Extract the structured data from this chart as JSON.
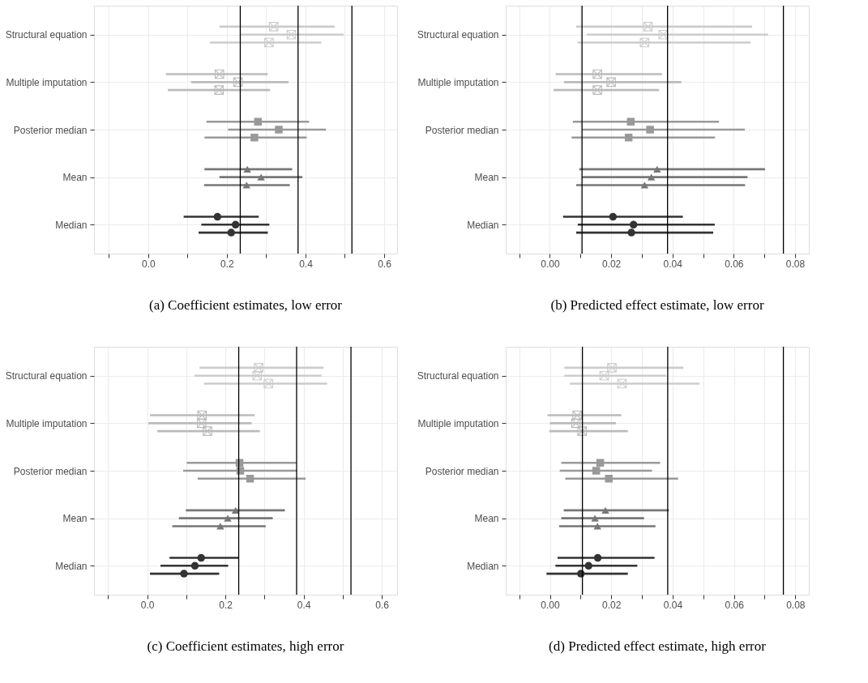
{
  "chart_data": [
    {
      "type": "scatter",
      "title": "(a) Coefficient estimates, low error",
      "orientation": "horizontal",
      "grid": true,
      "categories": [
        null,
        null,
        null,
        "Structural equation",
        null,
        null,
        null,
        null,
        null,
        "Multiple imputation",
        null,
        null,
        null,
        null,
        null,
        "Posterior median",
        null,
        null,
        null,
        null,
        null,
        "Mean",
        null,
        null,
        null,
        null,
        null,
        "Median",
        null,
        null,
        null
      ],
      "xlim": [
        -0.138,
        0.633
      ],
      "xticks": [
        {
          "value": -0.1,
          "label": null
        },
        {
          "value": 0,
          "label": "0.0"
        },
        {
          "value": 0.1,
          "label": null
        },
        {
          "value": 0.2,
          "label": "0.2"
        },
        {
          "value": 0.3,
          "label": null
        },
        {
          "value": 0.4,
          "label": "0.4"
        },
        {
          "value": 0.5,
          "label": null
        },
        {
          "value": 0.6,
          "label": "0.6"
        }
      ],
      "series": [
        {
          "color": "#cccccc",
          "marker": "cross",
          "values": [
            null,
            null,
            0.319,
            0.364,
            0.307,
            null,
            null,
            null,
            null,
            null,
            null,
            null,
            null,
            null,
            null,
            null,
            null,
            null,
            null,
            null,
            null,
            null,
            null,
            null,
            null,
            null,
            null,
            null,
            null,
            null,
            null
          ],
          "errors": [
            null,
            null,
            [
              0.181,
              0.474
            ],
            [
              0.235,
              0.497
            ],
            [
              0.157,
              0.44
            ],
            null,
            null,
            null,
            null,
            null,
            null,
            null,
            null,
            null,
            null,
            null,
            null,
            null,
            null,
            null,
            null,
            null,
            null,
            null,
            null,
            null,
            null,
            null,
            null,
            null,
            null
          ]
        },
        {
          "color": "#bbbbbb",
          "marker": "cross",
          "values": [
            null,
            null,
            null,
            null,
            null,
            null,
            null,
            null,
            0.181,
            0.228,
            0.18,
            null,
            null,
            null,
            null,
            null,
            null,
            null,
            null,
            null,
            null,
            null,
            null,
            null,
            null,
            null,
            null,
            null,
            null,
            null,
            null
          ],
          "errors": [
            null,
            null,
            null,
            null,
            null,
            null,
            null,
            null,
            [
              0.045,
              0.304
            ],
            [
              0.109,
              0.357
            ],
            [
              0.05,
              0.31
            ],
            null,
            null,
            null,
            null,
            null,
            null,
            null,
            null,
            null,
            null,
            null,
            null,
            null,
            null,
            null,
            null,
            null,
            null,
            null,
            null
          ]
        },
        {
          "color": "#999999",
          "marker": "square",
          "values": [
            null,
            null,
            null,
            null,
            null,
            null,
            null,
            null,
            null,
            null,
            null,
            null,
            null,
            null,
            0.279,
            0.332,
            0.27,
            null,
            null,
            null,
            null,
            null,
            null,
            null,
            null,
            null,
            null,
            null,
            null,
            null,
            null
          ],
          "errors": [
            null,
            null,
            null,
            null,
            null,
            null,
            null,
            null,
            null,
            null,
            null,
            null,
            null,
            null,
            [
              0.148,
              0.409
            ],
            [
              0.203,
              0.452
            ],
            [
              0.143,
              0.403
            ],
            null,
            null,
            null,
            null,
            null,
            null,
            null,
            null,
            null,
            null,
            null,
            null,
            null,
            null
          ]
        },
        {
          "color": "#777777",
          "marker": "triangle",
          "values": [
            null,
            null,
            null,
            null,
            null,
            null,
            null,
            null,
            null,
            null,
            null,
            null,
            null,
            null,
            null,
            null,
            null,
            null,
            null,
            null,
            0.252,
            0.287,
            0.25,
            null,
            null,
            null,
            null,
            null,
            null,
            null,
            null
          ],
          "errors": [
            null,
            null,
            null,
            null,
            null,
            null,
            null,
            null,
            null,
            null,
            null,
            null,
            null,
            null,
            null,
            null,
            null,
            null,
            null,
            null,
            [
              0.143,
              0.366
            ],
            [
              0.181,
              0.392
            ],
            [
              0.142,
              0.36
            ],
            null,
            null,
            null,
            null,
            null,
            null,
            null,
            null
          ]
        },
        {
          "color": "#333333",
          "marker": "circle",
          "values": [
            null,
            null,
            null,
            null,
            null,
            null,
            null,
            null,
            null,
            null,
            null,
            null,
            null,
            null,
            null,
            null,
            null,
            null,
            null,
            null,
            null,
            null,
            null,
            null,
            null,
            null,
            0.176,
            0.222,
            0.211,
            null,
            null
          ],
          "errors": [
            null,
            null,
            null,
            null,
            null,
            null,
            null,
            null,
            null,
            null,
            null,
            null,
            null,
            null,
            null,
            null,
            null,
            null,
            null,
            null,
            null,
            null,
            null,
            null,
            null,
            null,
            [
              0.09,
              0.281
            ],
            [
              0.135,
              0.308
            ],
            [
              0.128,
              0.304
            ],
            null,
            null
          ]
        }
      ],
      "ref_lines": [
        {
          "axis": "x",
          "value": 0.234,
          "color": "#000000"
        },
        {
          "axis": "x",
          "value": 0.381,
          "color": "#000000"
        },
        {
          "axis": "x",
          "value": 0.518,
          "color": "#000000"
        }
      ]
    },
    {
      "type": "scatter",
      "title": "(b) Predicted effect estimate, low error",
      "orientation": "horizontal",
      "grid": true,
      "categories": [
        null,
        null,
        null,
        "Structural equation",
        null,
        null,
        null,
        null,
        null,
        "Multiple imputation",
        null,
        null,
        null,
        null,
        null,
        "Posterior median",
        null,
        null,
        null,
        null,
        null,
        "Mean",
        null,
        null,
        null,
        null,
        null,
        "Median",
        null,
        null,
        null
      ],
      "xlim": [
        -0.0144,
        0.0845
      ],
      "xticks": [
        {
          "value": -0.01,
          "label": null
        },
        {
          "value": 0,
          "label": "0.00"
        },
        {
          "value": 0.01,
          "label": null
        },
        {
          "value": 0.02,
          "label": "0.02"
        },
        {
          "value": 0.03,
          "label": null
        },
        {
          "value": 0.04,
          "label": "0.04"
        },
        {
          "value": 0.05,
          "label": null
        },
        {
          "value": 0.06,
          "label": "0.06"
        },
        {
          "value": 0.07,
          "label": null
        },
        {
          "value": 0.08,
          "label": "0.08"
        }
      ],
      "series": [
        {
          "color": "#cccccc",
          "marker": "cross",
          "values": [
            null,
            null,
            0.032,
            0.037,
            0.0309,
            null,
            null,
            null,
            null,
            null,
            null,
            null,
            null,
            null,
            null,
            null,
            null,
            null,
            null,
            null,
            null,
            null,
            null,
            null,
            null,
            null,
            null,
            null,
            null,
            null,
            null
          ],
          "errors": [
            null,
            null,
            [
              0.0086,
              0.066
            ],
            [
              0.0121,
              0.0712
            ],
            [
              0.0091,
              0.0655
            ],
            null,
            null,
            null,
            null,
            null,
            null,
            null,
            null,
            null,
            null,
            null,
            null,
            null,
            null,
            null,
            null,
            null,
            null,
            null,
            null,
            null,
            null,
            null,
            null,
            null,
            null
          ]
        },
        {
          "color": "#bbbbbb",
          "marker": "cross",
          "values": [
            null,
            null,
            null,
            null,
            null,
            null,
            null,
            null,
            0.0155,
            0.02,
            0.0155,
            null,
            null,
            null,
            null,
            null,
            null,
            null,
            null,
            null,
            null,
            null,
            null,
            null,
            null,
            null,
            null,
            null,
            null,
            null,
            null
          ],
          "errors": [
            null,
            null,
            null,
            null,
            null,
            null,
            null,
            null,
            [
              0.0019,
              0.0366
            ],
            [
              0.0046,
              0.0429
            ],
            [
              0.0012,
              0.0356
            ],
            null,
            null,
            null,
            null,
            null,
            null,
            null,
            null,
            null,
            null,
            null,
            null,
            null,
            null,
            null,
            null,
            null,
            null,
            null,
            null
          ]
        },
        {
          "color": "#999999",
          "marker": "square",
          "values": [
            null,
            null,
            null,
            null,
            null,
            null,
            null,
            null,
            null,
            null,
            null,
            null,
            null,
            null,
            0.0264,
            0.0327,
            0.0257,
            null,
            null,
            null,
            null,
            null,
            null,
            null,
            null,
            null,
            null,
            null,
            null,
            null,
            null
          ],
          "errors": [
            null,
            null,
            null,
            null,
            null,
            null,
            null,
            null,
            null,
            null,
            null,
            null,
            null,
            null,
            [
              0.0075,
              0.0552
            ],
            [
              0.0105,
              0.0636
            ],
            [
              0.0071,
              0.0539
            ],
            null,
            null,
            null,
            null,
            null,
            null,
            null,
            null,
            null,
            null,
            null,
            null,
            null,
            null
          ]
        },
        {
          "color": "#777777",
          "marker": "triangle",
          "values": [
            null,
            null,
            null,
            null,
            null,
            null,
            null,
            null,
            null,
            null,
            null,
            null,
            null,
            null,
            null,
            null,
            null,
            null,
            null,
            null,
            0.035,
            0.0331,
            0.0309,
            null,
            null,
            null,
            null,
            null,
            null,
            null,
            null
          ],
          "errors": [
            null,
            null,
            null,
            null,
            null,
            null,
            null,
            null,
            null,
            null,
            null,
            null,
            null,
            null,
            null,
            null,
            null,
            null,
            null,
            null,
            [
              0.0096,
              0.0702
            ],
            [
              0.0105,
              0.0645
            ],
            [
              0.0086,
              0.0637
            ],
            null,
            null,
            null,
            null,
            null,
            null,
            null,
            null
          ]
        },
        {
          "color": "#333333",
          "marker": "circle",
          "values": [
            null,
            null,
            null,
            null,
            null,
            null,
            null,
            null,
            null,
            null,
            null,
            null,
            null,
            null,
            null,
            null,
            null,
            null,
            null,
            null,
            null,
            null,
            null,
            null,
            null,
            null,
            0.0206,
            0.0273,
            0.0266,
            null,
            null
          ],
          "errors": [
            null,
            null,
            null,
            null,
            null,
            null,
            null,
            null,
            null,
            null,
            null,
            null,
            null,
            null,
            null,
            null,
            null,
            null,
            null,
            null,
            null,
            null,
            null,
            null,
            null,
            null,
            [
              0.0043,
              0.0434
            ],
            [
              0.0091,
              0.0538
            ],
            [
              0.0086,
              0.0533
            ],
            null,
            null
          ]
        }
      ],
      "ref_lines": [
        {
          "axis": "x",
          "value": 0.0105,
          "color": "#000000"
        },
        {
          "axis": "x",
          "value": 0.0384,
          "color": "#000000"
        },
        {
          "axis": "x",
          "value": 0.0762,
          "color": "#000000"
        }
      ]
    },
    {
      "type": "scatter",
      "title": "(c) Coefficient estimates, high error",
      "orientation": "horizontal",
      "grid": true,
      "categories": [
        null,
        null,
        null,
        "Structural equation",
        null,
        null,
        null,
        null,
        null,
        "Multiple imputation",
        null,
        null,
        null,
        null,
        null,
        "Posterior median",
        null,
        null,
        null,
        null,
        null,
        "Mean",
        null,
        null,
        null,
        null,
        null,
        "Median",
        null,
        null,
        null
      ],
      "xlim": [
        -0.136,
        0.639
      ],
      "xticks": [
        {
          "value": -0.1,
          "label": null
        },
        {
          "value": 0,
          "label": "0.0"
        },
        {
          "value": 0.1,
          "label": null
        },
        {
          "value": 0.2,
          "label": "0.2"
        },
        {
          "value": 0.3,
          "label": null
        },
        {
          "value": 0.4,
          "label": "0.4"
        },
        {
          "value": 0.5,
          "label": null
        },
        {
          "value": 0.6,
          "label": "0.6"
        }
      ],
      "series": [
        {
          "color": "#cccccc",
          "marker": "cross",
          "values": [
            null,
            null,
            0.285,
            0.281,
            0.31,
            null,
            null,
            null,
            null,
            null,
            null,
            null,
            null,
            null,
            null,
            null,
            null,
            null,
            null,
            null,
            null,
            null,
            null,
            null,
            null,
            null,
            null,
            null,
            null,
            null,
            null
          ],
          "errors": [
            null,
            null,
            [
              0.134,
              0.451
            ],
            [
              0.121,
              0.446
            ],
            [
              0.145,
              0.46
            ],
            null,
            null,
            null,
            null,
            null,
            null,
            null,
            null,
            null,
            null,
            null,
            null,
            null,
            null,
            null,
            null,
            null,
            null,
            null,
            null,
            null,
            null,
            null,
            null,
            null,
            null
          ]
        },
        {
          "color": "#bbbbbb",
          "marker": "cross",
          "values": [
            null,
            null,
            null,
            null,
            null,
            null,
            null,
            null,
            0.14,
            0.139,
            0.154,
            null,
            null,
            null,
            null,
            null,
            null,
            null,
            null,
            null,
            null,
            null,
            null,
            null,
            null,
            null,
            null,
            null,
            null,
            null,
            null
          ],
          "errors": [
            null,
            null,
            null,
            null,
            null,
            null,
            null,
            null,
            [
              0.007,
              0.275
            ],
            [
              0.003,
              0.267
            ],
            [
              0.026,
              0.288
            ],
            null,
            null,
            null,
            null,
            null,
            null,
            null,
            null,
            null,
            null,
            null,
            null,
            null,
            null,
            null,
            null,
            null,
            null,
            null,
            null
          ]
        },
        {
          "color": "#999999",
          "marker": "square",
          "values": [
            null,
            null,
            null,
            null,
            null,
            null,
            null,
            null,
            null,
            null,
            null,
            null,
            null,
            null,
            0.236,
            0.238,
            0.263,
            null,
            null,
            null,
            null,
            null,
            null,
            null,
            null,
            null,
            null,
            null,
            null,
            null,
            null
          ],
          "errors": [
            null,
            null,
            null,
            null,
            null,
            null,
            null,
            null,
            null,
            null,
            null,
            null,
            null,
            null,
            [
              0.101,
              0.382
            ],
            [
              0.092,
              0.383
            ],
            [
              0.129,
              0.405
            ],
            null,
            null,
            null,
            null,
            null,
            null,
            null,
            null,
            null,
            null,
            null,
            null,
            null,
            null
          ]
        },
        {
          "color": "#777777",
          "marker": "triangle",
          "values": [
            null,
            null,
            null,
            null,
            null,
            null,
            null,
            null,
            null,
            null,
            null,
            null,
            null,
            null,
            null,
            null,
            null,
            null,
            null,
            null,
            0.226,
            0.206,
            0.187,
            null,
            null,
            null,
            null,
            null,
            null,
            null,
            null
          ],
          "errors": [
            null,
            null,
            null,
            null,
            null,
            null,
            null,
            null,
            null,
            null,
            null,
            null,
            null,
            null,
            null,
            null,
            null,
            null,
            null,
            null,
            [
              0.099,
              0.352
            ],
            [
              0.081,
              0.321
            ],
            [
              0.064,
              0.303
            ],
            null,
            null,
            null,
            null,
            null,
            null,
            null,
            null
          ]
        },
        {
          "color": "#333333",
          "marker": "circle",
          "values": [
            null,
            null,
            null,
            null,
            null,
            null,
            null,
            null,
            null,
            null,
            null,
            null,
            null,
            null,
            null,
            null,
            null,
            null,
            null,
            null,
            null,
            null,
            null,
            null,
            null,
            null,
            0.138,
            0.122,
            0.094,
            null,
            null
          ],
          "errors": [
            null,
            null,
            null,
            null,
            null,
            null,
            null,
            null,
            null,
            null,
            null,
            null,
            null,
            null,
            null,
            null,
            null,
            null,
            null,
            null,
            null,
            null,
            null,
            null,
            null,
            null,
            [
              0.057,
              0.234
            ],
            [
              0.034,
              0.207
            ],
            [
              0.007,
              0.184
            ],
            null,
            null
          ]
        }
      ],
      "ref_lines": [
        {
          "axis": "x",
          "value": 0.234,
          "color": "#000000"
        },
        {
          "axis": "x",
          "value": 0.382,
          "color": "#000000"
        },
        {
          "axis": "x",
          "value": 0.521,
          "color": "#000000"
        }
      ]
    },
    {
      "type": "scatter",
      "title": "(d) Predicted effect estimate, high error",
      "orientation": "horizontal",
      "grid": true,
      "categories": [
        null,
        null,
        null,
        "Structural equation",
        null,
        null,
        null,
        null,
        null,
        "Multiple imputation",
        null,
        null,
        null,
        null,
        null,
        "Posterior median",
        null,
        null,
        null,
        null,
        null,
        "Mean",
        null,
        null,
        null,
        null,
        null,
        "Median",
        null,
        null,
        null
      ],
      "xlim": [
        -0.0144,
        0.0844
      ],
      "xticks": [
        {
          "value": -0.01,
          "label": null
        },
        {
          "value": 0,
          "label": "0.00"
        },
        {
          "value": 0.01,
          "label": null
        },
        {
          "value": 0.02,
          "label": "0.02"
        },
        {
          "value": 0.03,
          "label": null
        },
        {
          "value": 0.04,
          "label": "0.04"
        },
        {
          "value": 0.05,
          "label": null
        },
        {
          "value": 0.06,
          "label": "0.06"
        },
        {
          "value": 0.07,
          "label": null
        },
        {
          "value": 0.08,
          "label": "0.08"
        }
      ],
      "series": [
        {
          "color": "#cccccc",
          "marker": "cross",
          "values": [
            null,
            null,
            0.0202,
            0.0177,
            0.0235,
            null,
            null,
            null,
            null,
            null,
            null,
            null,
            null,
            null,
            null,
            null,
            null,
            null,
            null,
            null,
            null,
            null,
            null,
            null,
            null,
            null,
            null,
            null,
            null,
            null,
            null
          ],
          "errors": [
            null,
            null,
            [
              0.0047,
              0.0435
            ],
            [
              0.0047,
              0.0379
            ],
            [
              0.0065,
              0.0488
            ],
            null,
            null,
            null,
            null,
            null,
            null,
            null,
            null,
            null,
            null,
            null,
            null,
            null,
            null,
            null,
            null,
            null,
            null,
            null,
            null,
            null,
            null,
            null,
            null,
            null,
            null
          ]
        },
        {
          "color": "#bbbbbb",
          "marker": "cross",
          "values": [
            null,
            null,
            null,
            null,
            null,
            null,
            null,
            null,
            0.0089,
            0.0085,
            0.0105,
            null,
            null,
            null,
            null,
            null,
            null,
            null,
            null,
            null,
            null,
            null,
            null,
            null,
            null,
            null,
            null,
            null,
            null,
            null,
            null
          ],
          "errors": [
            null,
            null,
            null,
            null,
            null,
            null,
            null,
            null,
            [
              -0.0008,
              0.0233
            ],
            [
              0.0,
              0.0215
            ],
            [
              -0.0002,
              0.0254
            ],
            null,
            null,
            null,
            null,
            null,
            null,
            null,
            null,
            null,
            null,
            null,
            null,
            null,
            null,
            null,
            null,
            null,
            null,
            null,
            null
          ]
        },
        {
          "color": "#999999",
          "marker": "square",
          "values": [
            null,
            null,
            null,
            null,
            null,
            null,
            null,
            null,
            null,
            null,
            null,
            null,
            null,
            null,
            0.0164,
            0.0151,
            0.0192,
            null,
            null,
            null,
            null,
            null,
            null,
            null,
            null,
            null,
            null,
            null,
            null,
            null,
            null
          ],
          "errors": [
            null,
            null,
            null,
            null,
            null,
            null,
            null,
            null,
            null,
            null,
            null,
            null,
            null,
            null,
            [
              0.0037,
              0.0359
            ],
            [
              0.0032,
              0.0333
            ],
            [
              0.005,
              0.0418
            ],
            null,
            null,
            null,
            null,
            null,
            null,
            null,
            null,
            null,
            null,
            null,
            null,
            null,
            null
          ]
        },
        {
          "color": "#777777",
          "marker": "triangle",
          "values": [
            null,
            null,
            null,
            null,
            null,
            null,
            null,
            null,
            null,
            null,
            null,
            null,
            null,
            null,
            null,
            null,
            null,
            null,
            null,
            null,
            0.0181,
            0.0147,
            0.0155,
            null,
            null,
            null,
            null,
            null,
            null,
            null,
            null
          ],
          "errors": [
            null,
            null,
            null,
            null,
            null,
            null,
            null,
            null,
            null,
            null,
            null,
            null,
            null,
            null,
            null,
            null,
            null,
            null,
            null,
            null,
            [
              0.0045,
              0.0388
            ],
            [
              0.0037,
              0.0307
            ],
            [
              0.003,
              0.0344
            ],
            null,
            null,
            null,
            null,
            null,
            null,
            null,
            null
          ]
        },
        {
          "color": "#333333",
          "marker": "circle",
          "values": [
            null,
            null,
            null,
            null,
            null,
            null,
            null,
            null,
            null,
            null,
            null,
            null,
            null,
            null,
            null,
            null,
            null,
            null,
            null,
            null,
            null,
            null,
            null,
            null,
            null,
            null,
            0.0156,
            0.0126,
            0.0101,
            null,
            null
          ],
          "errors": [
            null,
            null,
            null,
            null,
            null,
            null,
            null,
            null,
            null,
            null,
            null,
            null,
            null,
            null,
            null,
            null,
            null,
            null,
            null,
            null,
            null,
            null,
            null,
            null,
            null,
            null,
            [
              0.0025,
              0.0341
            ],
            [
              0.0018,
              0.0285
            ],
            [
              -0.0011,
              0.0254
            ],
            null,
            null
          ]
        }
      ],
      "ref_lines": [
        {
          "axis": "x",
          "value": 0.0106,
          "color": "#000000"
        },
        {
          "axis": "x",
          "value": 0.0384,
          "color": "#000000"
        },
        {
          "axis": "x",
          "value": 0.0761,
          "color": "#000000"
        }
      ]
    }
  ]
}
